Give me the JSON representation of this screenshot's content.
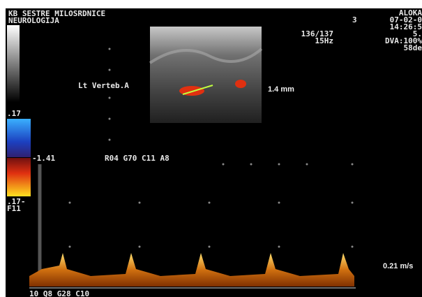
{
  "header": {
    "institution": "KB SESTRE MILOSRDNICE",
    "department": "NEUROLOGIJA",
    "brand": "ALOKA",
    "probe": "3",
    "date": "07-02-0",
    "time": "14:26:5",
    "depth": "5."
  },
  "image": {
    "frame": "136/137",
    "rate": "15Hz",
    "dva": "DVA:100%",
    "angle": "58de",
    "vessel_label": "Lt Verteb.A",
    "measurement": "1.4 mm"
  },
  "color_scale": {
    "top": ".17",
    "baseline": "-1.41",
    "bottom": ".17-",
    "filter": "F11"
  },
  "settings": {
    "color": "R04 G70 C11 A8",
    "doppler": "10 Q8 G28 C10"
  },
  "doppler": {
    "scale": "0.21 m/s"
  }
}
